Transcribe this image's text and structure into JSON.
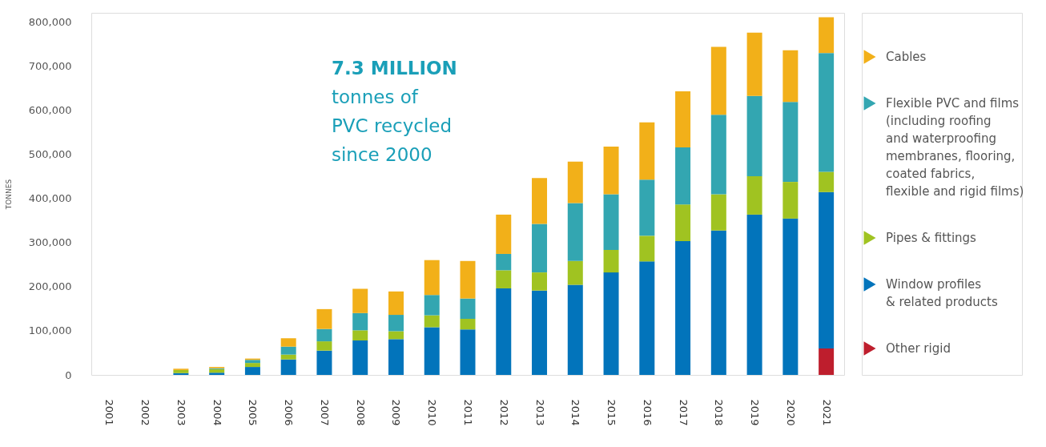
{
  "chart_data": {
    "type": "bar",
    "stacked": true,
    "ylabel": "TONNES",
    "categories": [
      "2001",
      "2002",
      "2003",
      "2004",
      "2005",
      "2006",
      "2007",
      "2008",
      "2009",
      "2010",
      "2011",
      "2012",
      "2013",
      "2014",
      "2015",
      "2016",
      "2017",
      "2018",
      "2019",
      "2020",
      "2021"
    ],
    "series": [
      {
        "name": "Other rigid",
        "color": "#be1e2d",
        "values": [
          null,
          null,
          null,
          null,
          null,
          null,
          null,
          null,
          null,
          null,
          null,
          null,
          null,
          null,
          null,
          null,
          null,
          null,
          null,
          null,
          60000
        ]
      },
      {
        "name": "Window profiles\n& related products",
        "color": "#0274bb",
        "values": [
          null,
          null,
          4000,
          5000,
          18000,
          35000,
          55000,
          78000,
          81000,
          108000,
          103000,
          196000,
          191000,
          204000,
          232000,
          257000,
          303000,
          327000,
          363000,
          354000,
          354000
        ]
      },
      {
        "name": "Pipes & fittings",
        "color": "#a0c321",
        "values": [
          null,
          null,
          7000,
          8000,
          9000,
          11000,
          21000,
          23000,
          18000,
          27000,
          24000,
          41000,
          41000,
          54000,
          51000,
          58000,
          83000,
          82000,
          87000,
          83000,
          46000
        ]
      },
      {
        "name": "Flexible PVC and films\n(including roofing\nand waterproofing\nmembranes, flooring,\ncoated fabrics,\nflexible and rigid films)",
        "color": "#33a6b1",
        "values": [
          null,
          null,
          null,
          2000,
          7000,
          18000,
          28000,
          39000,
          37000,
          46000,
          46000,
          37000,
          110000,
          131000,
          126000,
          127000,
          129000,
          180000,
          182000,
          181000,
          269000
        ]
      },
      {
        "name": "Cables",
        "color": "#f2b019",
        "values": [
          null,
          null,
          3000,
          3000,
          3000,
          19000,
          45000,
          55000,
          53000,
          79000,
          85000,
          89000,
          104000,
          94000,
          108000,
          130000,
          127000,
          154000,
          143000,
          117000,
          81000
        ]
      }
    ],
    "ylim": [
      0,
      820000
    ],
    "yticks": [
      0,
      {
        "value": 100000,
        "label": "100,000"
      },
      {
        "value": 200000,
        "label": "200,000"
      },
      {
        "value": 300000,
        "label": "300,000"
      },
      {
        "value": 400000,
        "label": "400,000"
      },
      {
        "value": 500000,
        "label": "500,000"
      },
      {
        "value": 600000,
        "label": "600,000"
      },
      {
        "value": 700000,
        "label": "700,000"
      },
      {
        "value": 800000,
        "label": "800,000"
      }
    ],
    "grid": false,
    "legend": "right",
    "annotations": [
      "7.3 MILLION",
      "tonnes of",
      "PVC recycled",
      "since 2000"
    ]
  }
}
